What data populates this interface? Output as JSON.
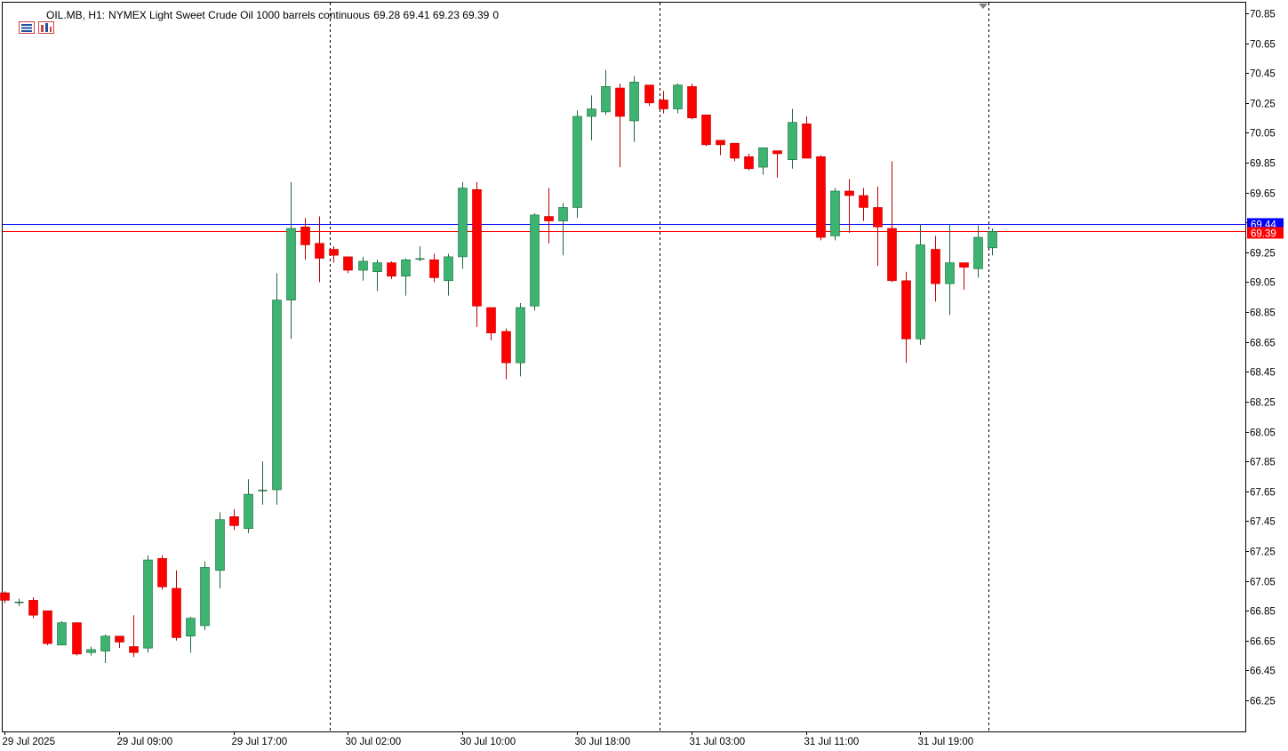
{
  "header": {
    "symbol": "OIL.MB, H1:",
    "description": "NYMEX Light Sweet Crude Oil 1000 barrels continuous",
    "ohlc": "69.28 69.41 69.23 69.39",
    "volume": "0"
  },
  "colors": {
    "bull": "#3cb371",
    "bull_stroke": "#1a6a3a",
    "bear": "#ff0000",
    "bear_stroke": "#c00000",
    "bid_line": "#0000ff",
    "ask_line": "#ff0000",
    "grid_border": "#000000"
  },
  "chart_data": {
    "type": "candlestick",
    "title": "OIL.MB, H1: NYMEX Light Sweet Crude Oil 1000 barrels continuous",
    "ylim": [
      66.12,
      70.9
    ],
    "y_ticks": [
      "70.85",
      "70.65",
      "70.45",
      "70.25",
      "70.05",
      "69.85",
      "69.65",
      "69.45",
      "69.25",
      "69.05",
      "68.85",
      "68.65",
      "68.45",
      "68.25",
      "68.05",
      "67.85",
      "67.65",
      "67.45",
      "67.25",
      "67.05",
      "66.85",
      "66.65",
      "66.45",
      "66.25"
    ],
    "x_labels": [
      {
        "index": 0,
        "label": "29 Jul 2025"
      },
      {
        "index": 8,
        "label": "29 Jul 09:00"
      },
      {
        "index": 16,
        "label": "29 Jul 17:00"
      },
      {
        "index": 24,
        "label": "30 Jul 02:00"
      },
      {
        "index": 32,
        "label": "30 Jul 10:00"
      },
      {
        "index": 40,
        "label": "30 Jul 18:00"
      },
      {
        "index": 48,
        "label": "31 Jul 03:00"
      },
      {
        "index": 56,
        "label": "31 Jul 11:00"
      },
      {
        "index": 64,
        "label": "31 Jul 19:00"
      }
    ],
    "period_separators": [
      22.75,
      45.75,
      68.75
    ],
    "bid_price": "69.44",
    "ask_price": "69.39",
    "candles": [
      {
        "o": 66.97,
        "h": 66.98,
        "l": 66.9,
        "c": 66.92
      },
      {
        "o": 66.91,
        "h": 66.93,
        "l": 66.88,
        "c": 66.91
      },
      {
        "o": 66.92,
        "h": 66.94,
        "l": 66.8,
        "c": 66.82
      },
      {
        "o": 66.85,
        "h": 66.85,
        "l": 66.62,
        "c": 66.63
      },
      {
        "o": 66.62,
        "h": 66.78,
        "l": 66.62,
        "c": 66.77
      },
      {
        "o": 66.77,
        "h": 66.77,
        "l": 66.55,
        "c": 66.56
      },
      {
        "o": 66.57,
        "h": 66.61,
        "l": 66.55,
        "c": 66.59
      },
      {
        "o": 66.58,
        "h": 66.69,
        "l": 66.5,
        "c": 66.68
      },
      {
        "o": 66.68,
        "h": 66.68,
        "l": 66.6,
        "c": 66.64
      },
      {
        "o": 66.61,
        "h": 66.82,
        "l": 66.54,
        "c": 66.57
      },
      {
        "o": 66.6,
        "h": 67.22,
        "l": 66.57,
        "c": 67.19
      },
      {
        "o": 67.2,
        "h": 67.22,
        "l": 66.99,
        "c": 67.01
      },
      {
        "o": 67.0,
        "h": 67.12,
        "l": 66.65,
        "c": 66.67
      },
      {
        "o": 66.68,
        "h": 66.81,
        "l": 66.57,
        "c": 66.8
      },
      {
        "o": 66.75,
        "h": 67.18,
        "l": 66.72,
        "c": 67.14
      },
      {
        "o": 67.12,
        "h": 67.51,
        "l": 67.0,
        "c": 67.46
      },
      {
        "o": 67.48,
        "h": 67.53,
        "l": 67.39,
        "c": 67.42
      },
      {
        "o": 67.4,
        "h": 67.73,
        "l": 67.37,
        "c": 67.63
      },
      {
        "o": 67.65,
        "h": 67.85,
        "l": 67.56,
        "c": 67.66
      },
      {
        "o": 67.66,
        "h": 69.11,
        "l": 67.56,
        "c": 68.93
      },
      {
        "o": 68.93,
        "h": 69.72,
        "l": 68.67,
        "c": 69.41
      },
      {
        "o": 69.42,
        "h": 69.48,
        "l": 69.2,
        "c": 69.3
      },
      {
        "o": 69.31,
        "h": 69.49,
        "l": 69.05,
        "c": 69.21
      },
      {
        "o": 69.27,
        "h": 69.29,
        "l": 69.18,
        "c": 69.23
      },
      {
        "o": 69.22,
        "h": 69.22,
        "l": 69.11,
        "c": 69.13
      },
      {
        "o": 69.13,
        "h": 69.22,
        "l": 69.06,
        "c": 69.19
      },
      {
        "o": 69.12,
        "h": 69.2,
        "l": 68.99,
        "c": 69.18
      },
      {
        "o": 69.18,
        "h": 69.19,
        "l": 69.07,
        "c": 69.09
      },
      {
        "o": 69.09,
        "h": 69.21,
        "l": 68.96,
        "c": 69.2
      },
      {
        "o": 69.2,
        "h": 69.29,
        "l": 69.19,
        "c": 69.21
      },
      {
        "o": 69.2,
        "h": 69.24,
        "l": 69.05,
        "c": 69.08
      },
      {
        "o": 69.06,
        "h": 69.24,
        "l": 68.96,
        "c": 69.22
      },
      {
        "o": 69.22,
        "h": 69.72,
        "l": 69.14,
        "c": 69.68
      },
      {
        "o": 69.67,
        "h": 69.72,
        "l": 68.75,
        "c": 68.89
      },
      {
        "o": 68.88,
        "h": 68.88,
        "l": 68.66,
        "c": 68.71
      },
      {
        "o": 68.72,
        "h": 68.74,
        "l": 68.4,
        "c": 68.51
      },
      {
        "o": 68.51,
        "h": 68.91,
        "l": 68.42,
        "c": 68.88
      },
      {
        "o": 68.89,
        "h": 69.51,
        "l": 68.86,
        "c": 69.5
      },
      {
        "o": 69.49,
        "h": 69.68,
        "l": 69.31,
        "c": 69.46
      },
      {
        "o": 69.46,
        "h": 69.58,
        "l": 69.23,
        "c": 69.55
      },
      {
        "o": 69.55,
        "h": 70.2,
        "l": 69.48,
        "c": 70.16
      },
      {
        "o": 70.16,
        "h": 70.3,
        "l": 70.0,
        "c": 70.21
      },
      {
        "o": 70.19,
        "h": 70.47,
        "l": 70.17,
        "c": 70.36
      },
      {
        "o": 70.35,
        "h": 70.38,
        "l": 69.82,
        "c": 70.16
      },
      {
        "o": 70.13,
        "h": 70.43,
        "l": 69.99,
        "c": 70.39
      },
      {
        "o": 70.37,
        "h": 70.37,
        "l": 70.23,
        "c": 70.25
      },
      {
        "o": 70.27,
        "h": 70.33,
        "l": 70.18,
        "c": 70.21
      },
      {
        "o": 70.21,
        "h": 70.38,
        "l": 70.18,
        "c": 70.37
      },
      {
        "o": 70.36,
        "h": 70.38,
        "l": 70.14,
        "c": 70.15
      },
      {
        "o": 70.17,
        "h": 70.17,
        "l": 69.96,
        "c": 69.97
      },
      {
        "o": 70.0,
        "h": 70.0,
        "l": 69.9,
        "c": 69.97
      },
      {
        "o": 69.98,
        "h": 69.98,
        "l": 69.86,
        "c": 69.88
      },
      {
        "o": 69.89,
        "h": 69.91,
        "l": 69.8,
        "c": 69.81
      },
      {
        "o": 69.82,
        "h": 69.95,
        "l": 69.77,
        "c": 69.95
      },
      {
        "o": 69.93,
        "h": 69.93,
        "l": 69.75,
        "c": 69.91
      },
      {
        "o": 69.87,
        "h": 70.21,
        "l": 69.81,
        "c": 70.12
      },
      {
        "o": 70.11,
        "h": 70.16,
        "l": 69.88,
        "c": 69.88
      },
      {
        "o": 69.89,
        "h": 69.9,
        "l": 69.33,
        "c": 69.35
      },
      {
        "o": 69.36,
        "h": 69.68,
        "l": 69.33,
        "c": 69.66
      },
      {
        "o": 69.66,
        "h": 69.74,
        "l": 69.38,
        "c": 69.63
      },
      {
        "o": 69.63,
        "h": 69.68,
        "l": 69.46,
        "c": 69.55
      },
      {
        "o": 69.55,
        "h": 69.69,
        "l": 69.16,
        "c": 69.42
      },
      {
        "o": 69.41,
        "h": 69.86,
        "l": 69.05,
        "c": 69.06
      },
      {
        "o": 69.06,
        "h": 69.12,
        "l": 68.51,
        "c": 68.67
      },
      {
        "o": 68.67,
        "h": 69.44,
        "l": 68.63,
        "c": 69.3
      },
      {
        "o": 69.27,
        "h": 69.36,
        "l": 68.92,
        "c": 69.04
      },
      {
        "o": 69.04,
        "h": 69.44,
        "l": 68.83,
        "c": 69.18
      },
      {
        "o": 69.18,
        "h": 69.18,
        "l": 69.0,
        "c": 69.15
      },
      {
        "o": 69.14,
        "h": 69.43,
        "l": 69.08,
        "c": 69.35
      },
      {
        "o": 69.28,
        "h": 69.41,
        "l": 69.23,
        "c": 69.39
      }
    ]
  }
}
